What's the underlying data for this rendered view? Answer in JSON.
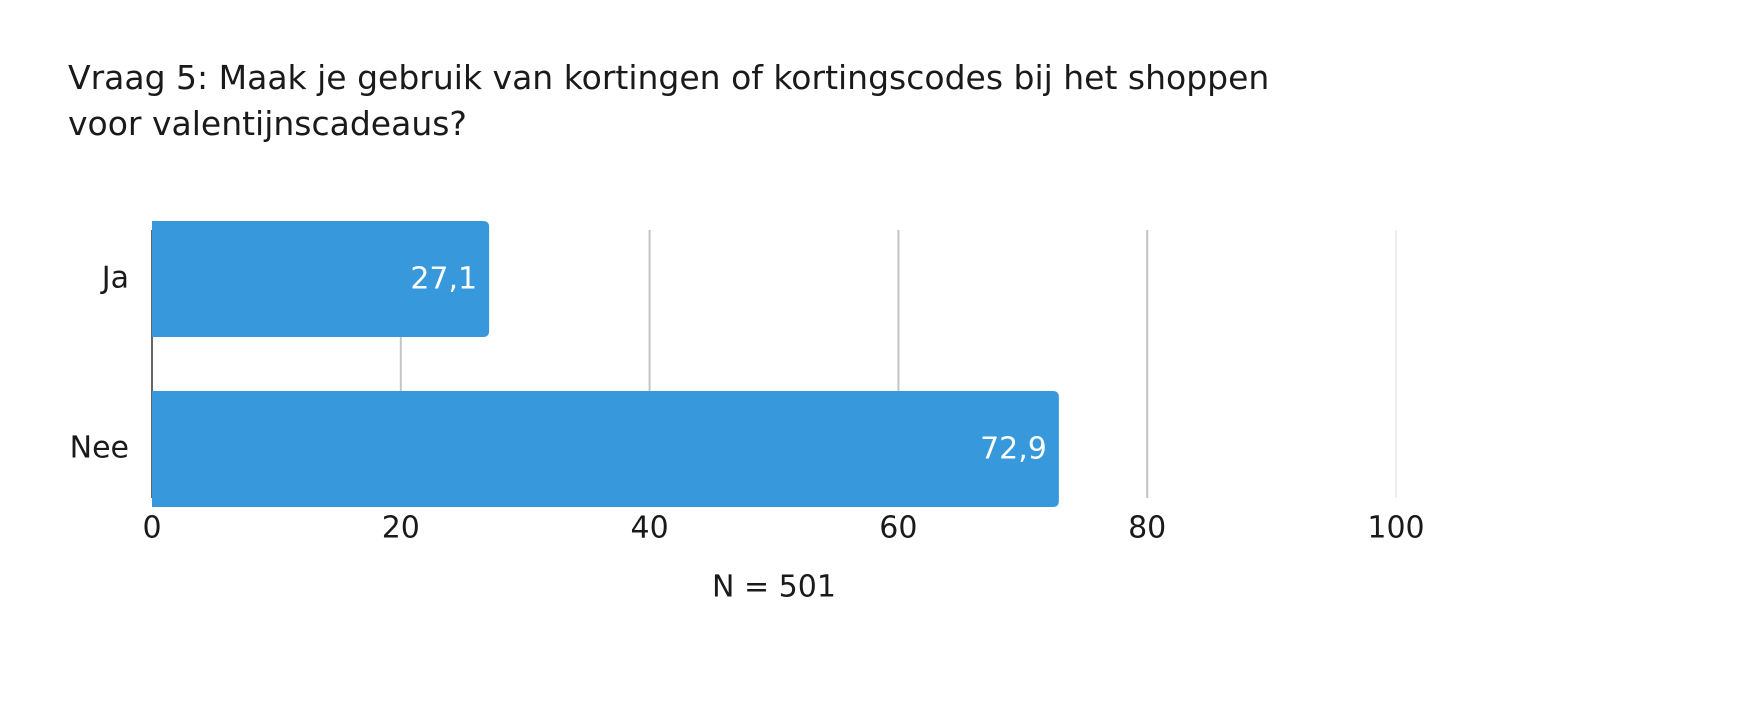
{
  "chart_data": {
    "type": "hbar",
    "title": "Vraag 5: Maak je gebruik van kortingen of kortingscodes bij het shoppen voor valentijnscadeaus?",
    "categories": [
      "Ja",
      "Nee"
    ],
    "values": [
      27.1,
      72.9
    ],
    "value_labels": [
      "27,1",
      "72,9"
    ],
    "color": "#3799db",
    "xlim": [
      0,
      100
    ],
    "xticks": [
      0,
      20,
      40,
      60,
      80,
      100
    ],
    "xlabel": "N = 501",
    "grid": true
  }
}
